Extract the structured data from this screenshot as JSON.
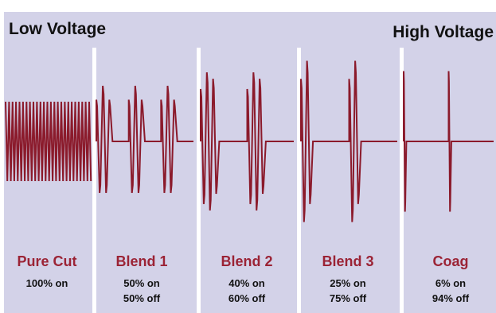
{
  "header": {
    "left_label": "Low Voltage",
    "right_label": "High Voltage"
  },
  "colors": {
    "background": "#d3d2e8",
    "waveform": "#8b1a2b",
    "mode_label": "#9b2335",
    "divider": "#ffffff"
  },
  "modes": [
    {
      "name": "Pure Cut",
      "line1": "100% on",
      "line2": "",
      "duty_on": 1.0
    },
    {
      "name": "Blend 1",
      "line1": "50% on",
      "line2": "50% off",
      "duty_on": 0.5
    },
    {
      "name": "Blend 2",
      "line1": "40% on",
      "line2": "60% off",
      "duty_on": 0.4
    },
    {
      "name": "Blend 3",
      "line1": "25% on",
      "line2": "75% off",
      "duty_on": 0.25
    },
    {
      "name": "Coag",
      "line1": "6% on",
      "line2": "94% off",
      "duty_on": 0.06
    }
  ]
}
